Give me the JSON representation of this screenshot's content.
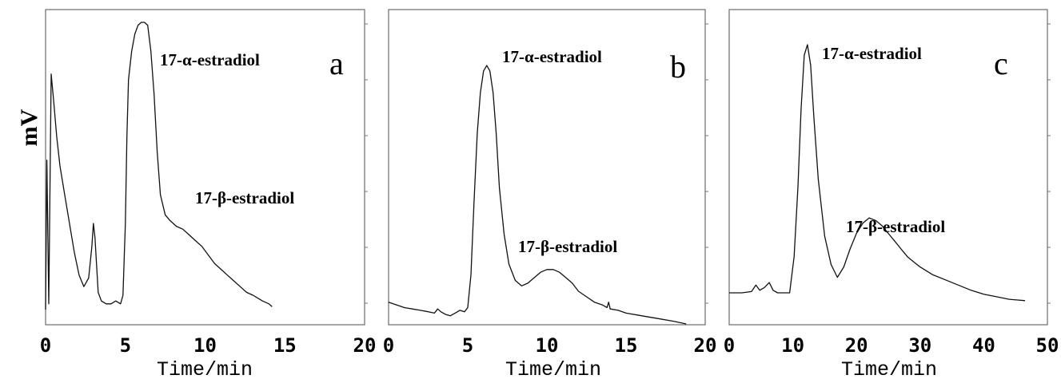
{
  "ylabel": "mV",
  "chart_data": [
    {
      "type": "line",
      "panel_letter": "a",
      "xlabel": "Time/min",
      "xlim": [
        0,
        20
      ],
      "x_ticks": [
        "0",
        "5",
        "10",
        "15",
        "20"
      ],
      "annotations": [
        {
          "text": "17-α-estradiol",
          "x": 6.1,
          "y": 1.0
        },
        {
          "text": "17-β-estradiol",
          "x": 9.0,
          "y": 0.29
        }
      ],
      "series": [
        {
          "x": [
            0,
            0.08,
            0.2,
            0.35,
            0.5,
            0.7,
            0.9,
            1.2,
            1.5,
            1.8,
            2.1,
            2.4,
            2.7,
            2.9,
            3.0,
            3.1,
            3.3,
            3.5,
            3.8,
            4.1,
            4.4,
            4.7,
            4.85,
            5.0,
            5.1,
            5.2,
            5.4,
            5.6,
            5.8,
            6.0,
            6.2,
            6.4,
            6.6,
            6.8,
            7.0,
            7.2,
            7.5,
            7.8,
            8.2,
            8.6,
            9.0,
            9.4,
            9.8,
            10.2,
            10.6,
            11.0,
            11.4,
            11.8,
            12.2,
            12.6,
            13.0,
            13.3,
            13.6,
            14.0,
            14.2
          ],
          "y": [
            0.0,
            0.52,
            0.02,
            0.82,
            0.73,
            0.6,
            0.5,
            0.4,
            0.3,
            0.2,
            0.12,
            0.08,
            0.11,
            0.22,
            0.3,
            0.25,
            0.06,
            0.03,
            0.02,
            0.02,
            0.03,
            0.02,
            0.05,
            0.3,
            0.6,
            0.8,
            0.9,
            0.96,
            0.99,
            1.0,
            1.0,
            0.99,
            0.9,
            0.75,
            0.55,
            0.4,
            0.33,
            0.31,
            0.29,
            0.28,
            0.26,
            0.24,
            0.22,
            0.19,
            0.16,
            0.14,
            0.12,
            0.1,
            0.08,
            0.06,
            0.05,
            0.04,
            0.03,
            0.02,
            0.01
          ]
        }
      ]
    },
    {
      "type": "line",
      "panel_letter": "b",
      "xlabel": "Time/min",
      "xlim": [
        0,
        20
      ],
      "x_ticks": [
        "0",
        "5",
        "10",
        "15",
        "20"
      ],
      "annotations": [
        {
          "text": "17-α-estradiol",
          "x": 6.3,
          "y": 0.95
        },
        {
          "text": "17-β-estradiol",
          "x": 10.0,
          "y": 0.2
        }
      ],
      "series": [
        {
          "x": [
            0,
            0.5,
            1,
            1.5,
            2,
            2.5,
            2.9,
            3.1,
            3.3,
            3.6,
            3.9,
            4.2,
            4.5,
            4.8,
            5.0,
            5.2,
            5.4,
            5.6,
            5.8,
            6.0,
            6.2,
            6.4,
            6.6,
            6.8,
            7.0,
            7.3,
            7.6,
            8.0,
            8.4,
            8.8,
            9.2,
            9.6,
            10.0,
            10.4,
            10.8,
            11.2,
            11.6,
            12.0,
            12.5,
            13.0,
            13.5,
            13.8,
            13.9,
            14.0,
            14.5,
            15,
            16,
            17,
            18,
            18.8
          ],
          "y": [
            0.08,
            0.07,
            0.06,
            0.055,
            0.05,
            0.045,
            0.04,
            0.055,
            0.045,
            0.035,
            0.03,
            0.04,
            0.05,
            0.045,
            0.06,
            0.18,
            0.45,
            0.7,
            0.85,
            0.93,
            0.95,
            0.93,
            0.85,
            0.7,
            0.5,
            0.33,
            0.22,
            0.16,
            0.14,
            0.15,
            0.17,
            0.19,
            0.2,
            0.2,
            0.19,
            0.17,
            0.15,
            0.12,
            0.1,
            0.08,
            0.07,
            0.06,
            0.08,
            0.055,
            0.05,
            0.04,
            0.03,
            0.02,
            0.01,
            0.0
          ]
        }
      ]
    },
    {
      "type": "line",
      "panel_letter": "c",
      "xlabel": "Time/min",
      "xlim": [
        0,
        50
      ],
      "x_ticks": [
        "0",
        "10",
        "20",
        "30",
        "40",
        "50"
      ],
      "annotations": [
        {
          "text": "17-α-estradiol",
          "x": 12.0,
          "y": 1.0
        },
        {
          "text": "17-β-estradiol",
          "x": 21.5,
          "y": 0.33
        }
      ],
      "series": [
        {
          "x": [
            0,
            2,
            3.5,
            4.2,
            4.8,
            5.5,
            6.3,
            6.9,
            7.6,
            8.5,
            9.5,
            10.2,
            10.8,
            11.3,
            11.8,
            12.3,
            12.8,
            13.3,
            14,
            15,
            16,
            17,
            18,
            19,
            20,
            21,
            22,
            23,
            24,
            25,
            26,
            27,
            28,
            29,
            30,
            32,
            34,
            36,
            38,
            40,
            42,
            44,
            46.5
          ],
          "y": [
            0.04,
            0.04,
            0.045,
            0.07,
            0.05,
            0.06,
            0.08,
            0.05,
            0.04,
            0.04,
            0.04,
            0.18,
            0.45,
            0.75,
            0.96,
            1.0,
            0.92,
            0.72,
            0.48,
            0.26,
            0.15,
            0.1,
            0.14,
            0.21,
            0.27,
            0.31,
            0.33,
            0.32,
            0.3,
            0.27,
            0.24,
            0.21,
            0.18,
            0.16,
            0.14,
            0.11,
            0.09,
            0.07,
            0.05,
            0.035,
            0.025,
            0.015,
            0.01
          ]
        }
      ]
    }
  ]
}
